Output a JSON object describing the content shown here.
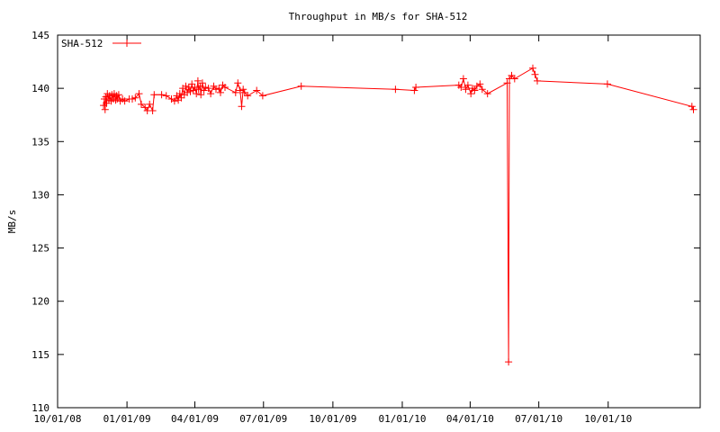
{
  "chart_data": {
    "type": "line",
    "title": "Throughput in MB/s for SHA-512",
    "xlabel": "",
    "ylabel": "MB/s",
    "ylim": [
      110,
      145
    ],
    "yticks": [
      110,
      115,
      120,
      125,
      130,
      135,
      140,
      145
    ],
    "xlim": [
      "2008-10-01",
      "2011-01-31"
    ],
    "xticks": [
      "2008-10-01",
      "2009-01-01",
      "2009-04-01",
      "2009-07-01",
      "2009-10-01",
      "2010-01-01",
      "2010-04-01",
      "2010-07-01",
      "2010-10-01"
    ],
    "xtick_labels": [
      "10/01/08",
      "01/01/09",
      "04/01/09",
      "07/01/09",
      "10/01/09",
      "01/01/10",
      "04/01/10",
      "07/01/10",
      "10/01/10"
    ],
    "grid": false,
    "legend_position": "top-left",
    "series": [
      {
        "name": "SHA-512",
        "color": "#ff0000",
        "marker": "plus",
        "points": [
          [
            "2008-12-01",
            138.4
          ],
          [
            "2008-12-02",
            139.0
          ],
          [
            "2008-12-03",
            138.0
          ],
          [
            "2008-12-04",
            139.2
          ],
          [
            "2008-12-05",
            138.6
          ],
          [
            "2008-12-06",
            139.5
          ],
          [
            "2008-12-08",
            138.9
          ],
          [
            "2008-12-09",
            139.3
          ],
          [
            "2008-12-11",
            138.8
          ],
          [
            "2008-12-12",
            139.4
          ],
          [
            "2008-12-14",
            139.0
          ],
          [
            "2008-12-15",
            139.5
          ],
          [
            "2008-12-17",
            138.9
          ],
          [
            "2008-12-18",
            139.3
          ],
          [
            "2008-12-19",
            139.0
          ],
          [
            "2008-12-21",
            139.4
          ],
          [
            "2008-12-23",
            138.8
          ],
          [
            "2008-12-26",
            139.0
          ],
          [
            "2008-12-29",
            138.8
          ],
          [
            "2009-01-04",
            139.0
          ],
          [
            "2009-01-08",
            139.0
          ],
          [
            "2009-01-12",
            139.1
          ],
          [
            "2009-01-17",
            139.5
          ],
          [
            "2009-01-20",
            138.5
          ],
          [
            "2009-01-25",
            138.2
          ],
          [
            "2009-01-28",
            137.9
          ],
          [
            "2009-01-31",
            138.5
          ],
          [
            "2009-02-04",
            137.9
          ],
          [
            "2009-02-06",
            139.4
          ],
          [
            "2009-02-16",
            139.4
          ],
          [
            "2009-02-22",
            139.3
          ],
          [
            "2009-03-01",
            139.0
          ],
          [
            "2009-03-05",
            138.8
          ],
          [
            "2009-03-08",
            139.3
          ],
          [
            "2009-03-10",
            138.9
          ],
          [
            "2009-03-12",
            139.5
          ],
          [
            "2009-03-14",
            139.1
          ],
          [
            "2009-03-16",
            140.0
          ],
          [
            "2009-03-18",
            139.4
          ],
          [
            "2009-03-20",
            140.2
          ],
          [
            "2009-03-22",
            139.6
          ],
          [
            "2009-03-24",
            140.1
          ],
          [
            "2009-03-26",
            139.7
          ],
          [
            "2009-03-28",
            140.4
          ],
          [
            "2009-03-30",
            139.8
          ],
          [
            "2009-04-01",
            140.1
          ],
          [
            "2009-04-03",
            139.5
          ],
          [
            "2009-04-05",
            140.7
          ],
          [
            "2009-04-06",
            139.9
          ],
          [
            "2009-04-08",
            140.2
          ],
          [
            "2009-04-09",
            139.4
          ],
          [
            "2009-04-11",
            140.5
          ],
          [
            "2009-04-13",
            139.8
          ],
          [
            "2009-04-15",
            140.1
          ],
          [
            "2009-04-19",
            140.0
          ],
          [
            "2009-04-22",
            139.5
          ],
          [
            "2009-04-26",
            140.2
          ],
          [
            "2009-04-29",
            139.9
          ],
          [
            "2009-05-03",
            140.0
          ],
          [
            "2009-05-05",
            139.6
          ],
          [
            "2009-05-08",
            140.3
          ],
          [
            "2009-05-11",
            140.1
          ],
          [
            "2009-05-25",
            139.6
          ],
          [
            "2009-05-28",
            140.5
          ],
          [
            "2009-05-31",
            139.8
          ],
          [
            "2009-06-02",
            138.3
          ],
          [
            "2009-06-04",
            139.9
          ],
          [
            "2009-06-06",
            139.6
          ],
          [
            "2009-06-10",
            139.3
          ],
          [
            "2009-06-22",
            139.8
          ],
          [
            "2009-06-30",
            139.3
          ],
          [
            "2009-08-20",
            140.2
          ],
          [
            "2009-12-23",
            139.9
          ],
          [
            "2010-01-17",
            139.8
          ],
          [
            "2010-01-19",
            140.1
          ],
          [
            "2010-03-17",
            140.3
          ],
          [
            "2010-03-20",
            140.1
          ],
          [
            "2010-03-23",
            140.9
          ],
          [
            "2010-03-26",
            139.9
          ],
          [
            "2010-03-29",
            140.3
          ],
          [
            "2010-04-02",
            139.5
          ],
          [
            "2010-04-04",
            140.0
          ],
          [
            "2010-04-07",
            139.8
          ],
          [
            "2010-04-10",
            140.2
          ],
          [
            "2010-04-14",
            140.4
          ],
          [
            "2010-04-17",
            139.9
          ],
          [
            "2010-04-24",
            139.5
          ],
          [
            "2010-05-20",
            140.5
          ],
          [
            "2010-05-22",
            114.3
          ],
          [
            "2010-05-23",
            140.9
          ],
          [
            "2010-05-26",
            141.2
          ],
          [
            "2010-05-30",
            140.9
          ],
          [
            "2010-06-23",
            141.9
          ],
          [
            "2010-06-26",
            141.3
          ],
          [
            "2010-06-29",
            140.7
          ],
          [
            "2010-09-30",
            140.4
          ],
          [
            "2011-01-20",
            138.3
          ],
          [
            "2011-01-22",
            138.0
          ]
        ]
      }
    ]
  }
}
